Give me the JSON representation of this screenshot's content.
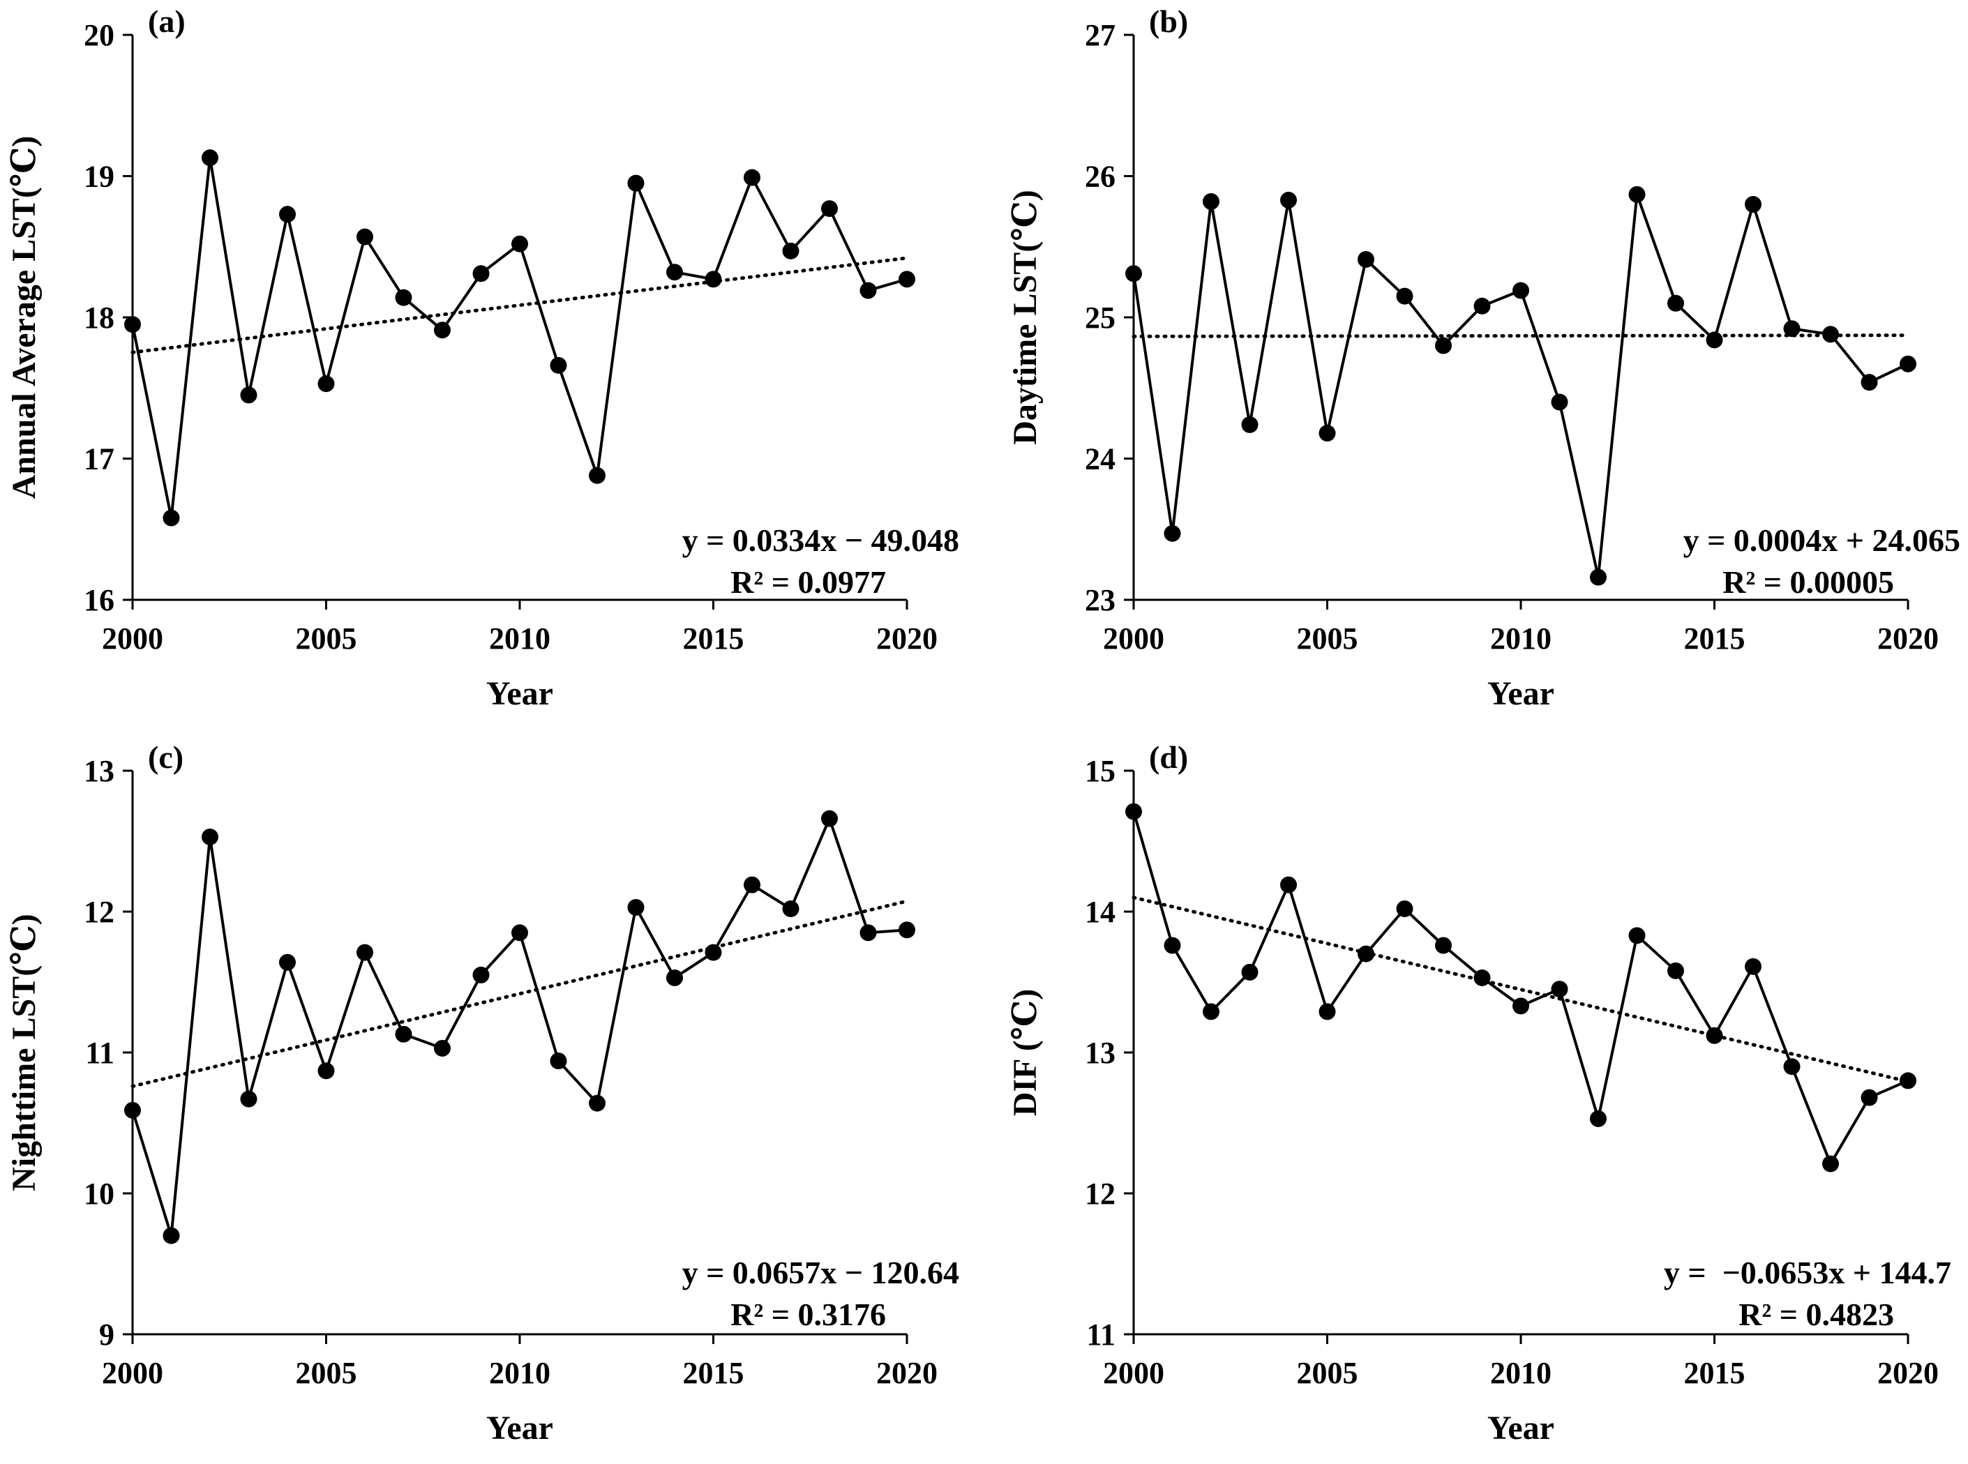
{
  "chart_data": [
    {
      "type": "line",
      "panel": "(a)",
      "xlabel": "Year",
      "ylabel": "Annual Average LST(℃)",
      "xlim": [
        2000,
        2020
      ],
      "ylim": [
        16,
        20
      ],
      "xticks": [
        2000,
        2005,
        2010,
        2015,
        2020
      ],
      "yticks": [
        16,
        17,
        18,
        19,
        20
      ],
      "x": [
        2000,
        2001,
        2002,
        2003,
        2004,
        2005,
        2006,
        2007,
        2008,
        2009,
        2010,
        2011,
        2012,
        2013,
        2014,
        2015,
        2016,
        2017,
        2018,
        2019,
        2020
      ],
      "values": [
        17.95,
        16.58,
        19.13,
        17.45,
        18.73,
        17.53,
        18.57,
        18.14,
        17.91,
        18.31,
        18.52,
        17.66,
        16.88,
        18.95,
        18.32,
        18.27,
        18.99,
        18.47,
        18.77,
        18.19,
        18.27
      ],
      "trend": {
        "slope": 0.0334,
        "intercept": -49.048
      },
      "equation": "y = 0.0334x − 49.048",
      "r2_label": "R² = 0.0977"
    },
    {
      "type": "line",
      "panel": "(b)",
      "xlabel": "Year",
      "ylabel": "Daytime LST(℃)",
      "xlim": [
        2000,
        2020
      ],
      "ylim": [
        23,
        27
      ],
      "xticks": [
        2000,
        2005,
        2010,
        2015,
        2020
      ],
      "yticks": [
        23,
        24,
        25,
        26,
        27
      ],
      "x": [
        2000,
        2001,
        2002,
        2003,
        2004,
        2005,
        2006,
        2007,
        2008,
        2009,
        2010,
        2011,
        2012,
        2013,
        2014,
        2015,
        2016,
        2017,
        2018,
        2019,
        2020
      ],
      "values": [
        25.31,
        23.47,
        25.82,
        24.24,
        25.83,
        24.18,
        25.41,
        25.15,
        24.8,
        25.08,
        25.19,
        24.4,
        23.16,
        25.87,
        25.1,
        24.84,
        25.8,
        24.92,
        24.88,
        24.54,
        24.67
      ],
      "trend": {
        "slope": 0.0004,
        "intercept": 24.065
      },
      "equation": "y = 0.0004x + 24.065",
      "r2_label": "R² = 0.00005"
    },
    {
      "type": "line",
      "panel": "(c)",
      "xlabel": "Year",
      "ylabel": "Nighttime LST(℃)",
      "xlim": [
        2000,
        2020
      ],
      "ylim": [
        9,
        13
      ],
      "xticks": [
        2000,
        2005,
        2010,
        2015,
        2020
      ],
      "yticks": [
        9,
        10,
        11,
        12,
        13
      ],
      "x": [
        2000,
        2001,
        2002,
        2003,
        2004,
        2005,
        2006,
        2007,
        2008,
        2009,
        2010,
        2011,
        2012,
        2013,
        2014,
        2015,
        2016,
        2017,
        2018,
        2019,
        2020
      ],
      "values": [
        10.59,
        9.7,
        12.53,
        10.67,
        11.64,
        10.87,
        11.71,
        11.13,
        11.03,
        11.55,
        11.85,
        10.94,
        10.64,
        12.03,
        11.53,
        11.71,
        12.19,
        12.02,
        12.66,
        11.85,
        11.87
      ],
      "trend": {
        "slope": 0.0657,
        "intercept": -120.64
      },
      "equation": "y = 0.0657x − 120.64",
      "r2_label": "R² = 0.3176"
    },
    {
      "type": "line",
      "panel": "(d)",
      "xlabel": "Year",
      "ylabel": "DIF (℃)",
      "xlim": [
        2000,
        2020
      ],
      "ylim": [
        11,
        15
      ],
      "xticks": [
        2000,
        2005,
        2010,
        2015,
        2020
      ],
      "yticks": [
        11,
        12,
        13,
        14,
        15
      ],
      "x": [
        2000,
        2001,
        2002,
        2003,
        2004,
        2005,
        2006,
        2007,
        2008,
        2009,
        2010,
        2011,
        2012,
        2013,
        2014,
        2015,
        2016,
        2017,
        2018,
        2019,
        2020
      ],
      "values": [
        14.71,
        13.76,
        13.29,
        13.57,
        14.19,
        13.29,
        13.7,
        14.02,
        13.76,
        13.53,
        13.33,
        13.45,
        12.53,
        13.83,
        13.58,
        13.12,
        13.61,
        12.9,
        12.21,
        12.68,
        12.8
      ],
      "trend": {
        "slope": -0.0653,
        "intercept": 144.7
      },
      "equation": "y =  −0.0653x + 144.7",
      "r2_label": "R² = 0.4823"
    }
  ]
}
